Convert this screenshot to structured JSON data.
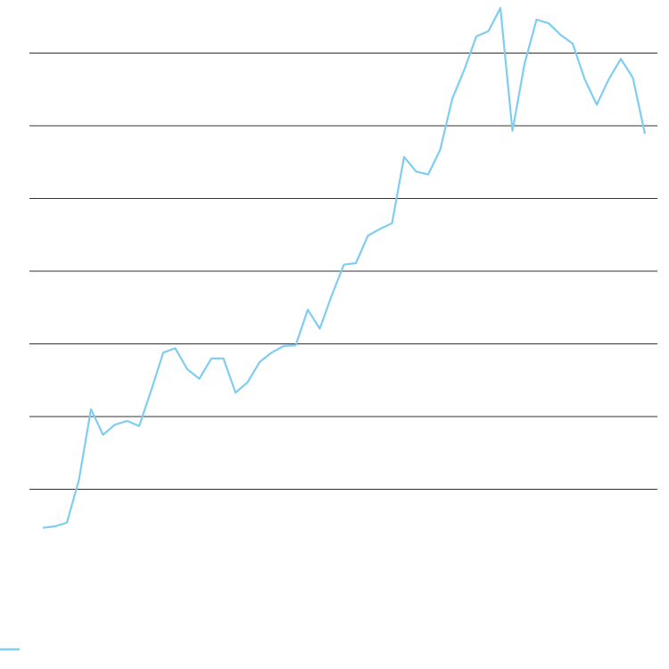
{
  "chart_data": {
    "type": "line",
    "title": "",
    "xlabel": "",
    "ylabel": "",
    "grid": true,
    "gridlines_y": [
      1,
      2,
      3,
      4,
      5,
      6,
      7
    ],
    "ylim": [
      0,
      7.73
    ],
    "xlim": [
      -1.1,
      51.0
    ],
    "legend_placement": "bottom-left",
    "line_color": "#7fcdf0",
    "grid_color": "#333333",
    "series": [
      {
        "values": [
          0.47,
          0.49,
          0.54,
          1.13,
          2.1,
          1.75,
          1.89,
          1.94,
          1.87,
          2.36,
          2.88,
          2.94,
          2.65,
          2.52,
          2.8,
          2.8,
          2.33,
          2.47,
          2.75,
          2.88,
          2.97,
          2.98,
          3.47,
          3.21,
          3.67,
          4.09,
          4.11,
          4.49,
          4.58,
          4.66,
          5.57,
          5.37,
          5.33,
          5.67,
          6.37,
          6.77,
          7.23,
          7.3,
          7.62,
          5.93,
          6.85,
          7.46,
          7.41,
          7.25,
          7.13,
          6.64,
          6.29,
          6.64,
          6.92,
          6.66,
          5.89
        ]
      }
    ]
  }
}
